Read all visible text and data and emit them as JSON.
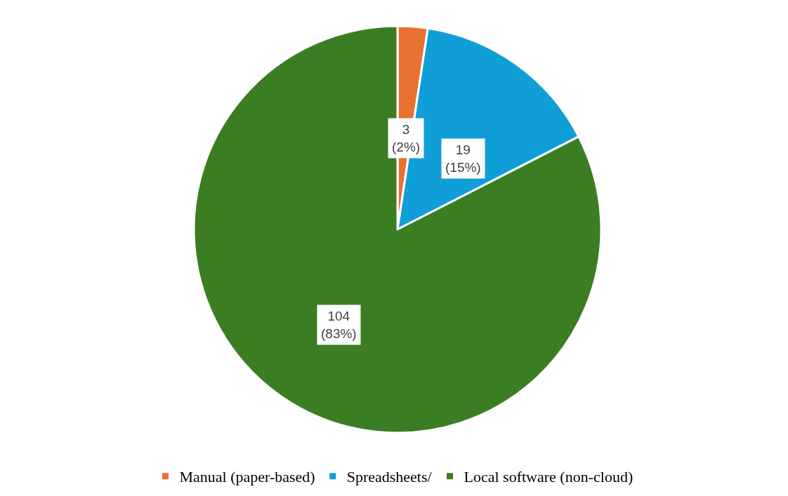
{
  "chart_data": {
    "type": "pie",
    "categories": [
      "Manual (paper-based)",
      "Spreadsheets/",
      "Local software (non-cloud)"
    ],
    "values": [
      3,
      19,
      104
    ],
    "colors": [
      "#e97132",
      "#0f9ed5",
      "#3a7d22"
    ],
    "value_labels": [
      "3\n(2%)",
      "19\n(15%)",
      "104\n(83%)"
    ],
    "legend": "bottom"
  }
}
